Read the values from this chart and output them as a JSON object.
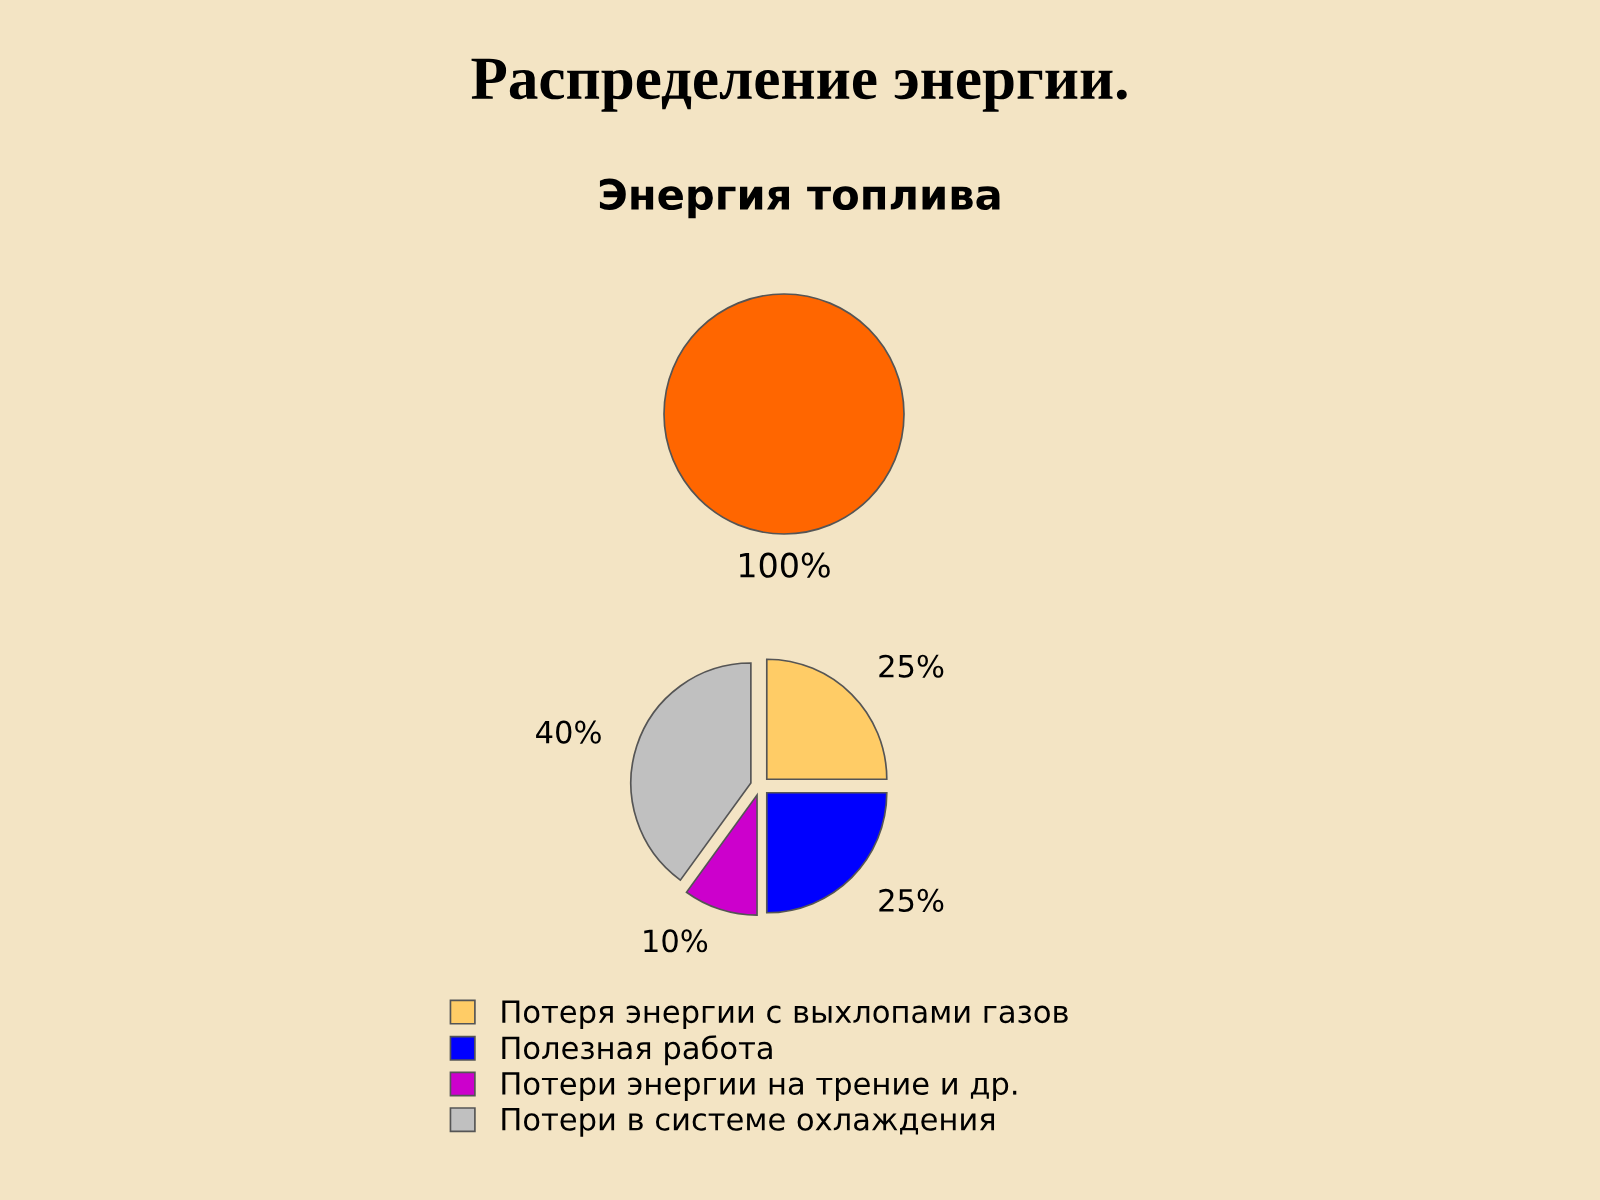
{
  "chart_data": [
    {
      "type": "pie",
      "title": "Распределение энергии.",
      "subtitle": "Энергия топлива",
      "categories": [
        null
      ],
      "values": [
        100
      ],
      "colors": [
        "#ff6600"
      ],
      "value_labels": [
        "100%"
      ]
    },
    {
      "type": "pie",
      "categories": [
        "Потеря энергии с выхлопами газов",
        "Полезная работа",
        "Потери энергии на трение и др.",
        "Потери в системе охлаждения"
      ],
      "values": [
        25,
        25,
        10,
        40
      ],
      "colors": [
        "#ffcc66",
        "#0000ff",
        "#cc00cc",
        "#c0c0c0"
      ],
      "value_labels": [
        "25%",
        "25%",
        "10%",
        "40%"
      ],
      "legend": "bottom"
    }
  ]
}
